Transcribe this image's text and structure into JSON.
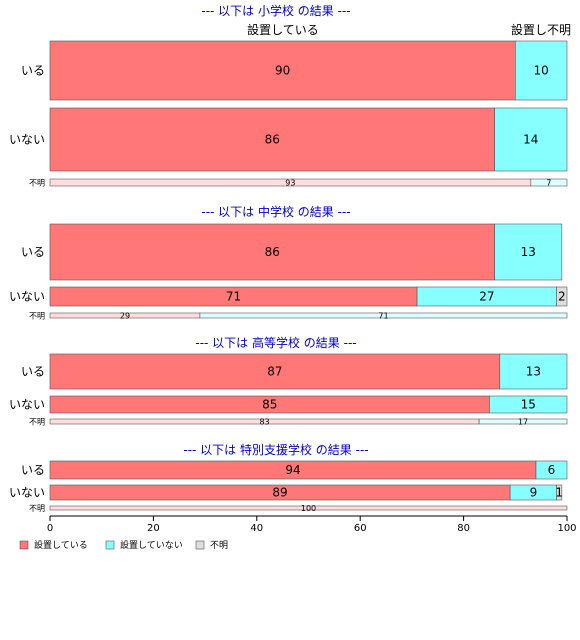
{
  "chart_data": {
    "type": "bar",
    "orientation": "horizontal",
    "stacked": "percent",
    "top_labels": [
      "設置している",
      "設置し不明"
    ],
    "x_ticks": [
      "0",
      "20",
      "40",
      "60",
      "80",
      "100"
    ],
    "xlim": [
      0,
      100
    ],
    "legend_position": "bottom-left",
    "colors": {
      "設置している": "#ff7777",
      "設置していない": "#88ffff",
      "不明": "#dddddd",
      "title": "#0000cc"
    },
    "legend": [
      {
        "key": "設置している",
        "label": "設置している"
      },
      {
        "key": "設置していない",
        "label": "設置していない"
      },
      {
        "key": "不明",
        "label": "不明"
      }
    ],
    "panels": [
      {
        "title": "--- 以下は 小学校 の結果 ---",
        "rows": [
          {
            "label": "いる",
            "values": [
              90,
              10,
              0
            ]
          },
          {
            "label": "いない",
            "values": [
              86,
              14,
              0
            ]
          },
          {
            "label": "不明",
            "values": [
              93,
              7,
              0
            ]
          }
        ]
      },
      {
        "title": "--- 以下は 中学校 の結果 ---",
        "rows": [
          {
            "label": "いる",
            "values": [
              86,
              13,
              0
            ]
          },
          {
            "label": "いない",
            "values": [
              71,
              27,
              2
            ]
          },
          {
            "label": "不明",
            "values": [
              29,
              71,
              0
            ]
          }
        ]
      },
      {
        "title": "--- 以下は 高等学校 の結果 ---",
        "rows": [
          {
            "label": "いる",
            "values": [
              87,
              13,
              0
            ]
          },
          {
            "label": "いない",
            "values": [
              85,
              15,
              0
            ]
          },
          {
            "label": "不明",
            "values": [
              83,
              17,
              0
            ]
          }
        ]
      },
      {
        "title": "--- 以下は 特別支援学校 の結果 ---",
        "rows": [
          {
            "label": "いる",
            "values": [
              94,
              6,
              0
            ]
          },
          {
            "label": "いない",
            "values": [
              89,
              9,
              1
            ]
          },
          {
            "label": "不明",
            "values": [
              100,
              0,
              0
            ]
          }
        ]
      }
    ]
  }
}
